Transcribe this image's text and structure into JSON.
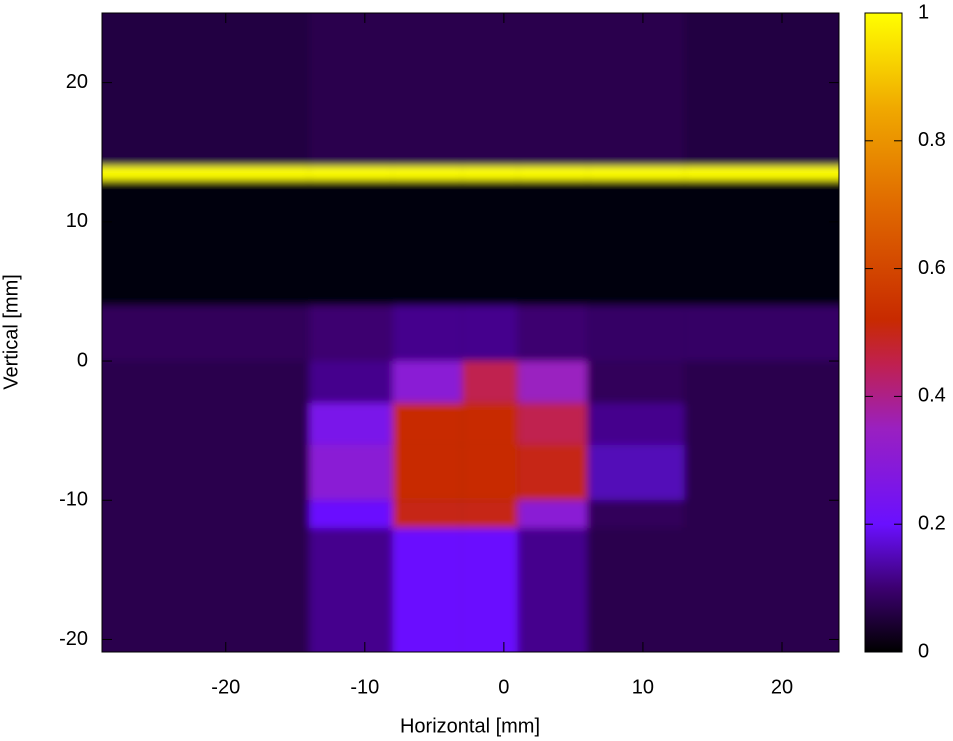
{
  "chart_data": {
    "type": "heatmap",
    "x_label": "Horizontal [mm]",
    "y_label": "Vertical [mm]",
    "xlim": [
      -28.9,
      24.1
    ],
    "ylim": [
      -20.9,
      25
    ],
    "xticks": [
      -20,
      -10,
      0,
      10,
      20
    ],
    "yticks": [
      -20,
      -10,
      0,
      10,
      20
    ],
    "xbins": [
      -28.9,
      -14,
      -8,
      -3,
      1,
      6,
      13,
      24.1
    ],
    "ybins": [
      -20.9,
      -12,
      -10,
      -6,
      -3,
      0,
      4,
      13,
      14,
      25
    ],
    "z": [
      [
        0.07,
        0.12,
        0.2,
        0.2,
        0.12,
        0.07,
        0.07
      ],
      [
        0.07,
        0.2,
        0.5,
        0.5,
        0.3,
        0.08,
        0.07
      ],
      [
        0.07,
        0.3,
        0.52,
        0.52,
        0.5,
        0.15,
        0.07
      ],
      [
        0.07,
        0.25,
        0.52,
        0.52,
        0.45,
        0.12,
        0.07
      ],
      [
        0.07,
        0.12,
        0.3,
        0.45,
        0.35,
        0.08,
        0.07
      ],
      [
        0.08,
        0.1,
        0.12,
        0.12,
        0.1,
        0.09,
        0.09
      ],
      [
        0.01,
        0.01,
        0.01,
        0.01,
        0.01,
        0.01,
        0.01
      ],
      [
        1,
        1,
        1,
        1,
        1,
        1,
        1
      ],
      [
        0.06,
        0.07,
        0.07,
        0.07,
        0.07,
        0.07,
        0.06
      ]
    ],
    "colorbar_lim": [
      0,
      1
    ],
    "colorbar_ticks": [
      0,
      0.2,
      0.4,
      0.6,
      0.8,
      1
    ],
    "colormap": [
      [
        0,
        "#000000"
      ],
      [
        0.1,
        "#3c0070"
      ],
      [
        0.2,
        "#6a10ff"
      ],
      [
        0.35,
        "#9a20c0"
      ],
      [
        0.45,
        "#c02050"
      ],
      [
        0.52,
        "#c82a00"
      ],
      [
        0.7,
        "#e06a00"
      ],
      [
        0.85,
        "#f0a800"
      ],
      [
        1,
        "#ffff00"
      ]
    ]
  }
}
